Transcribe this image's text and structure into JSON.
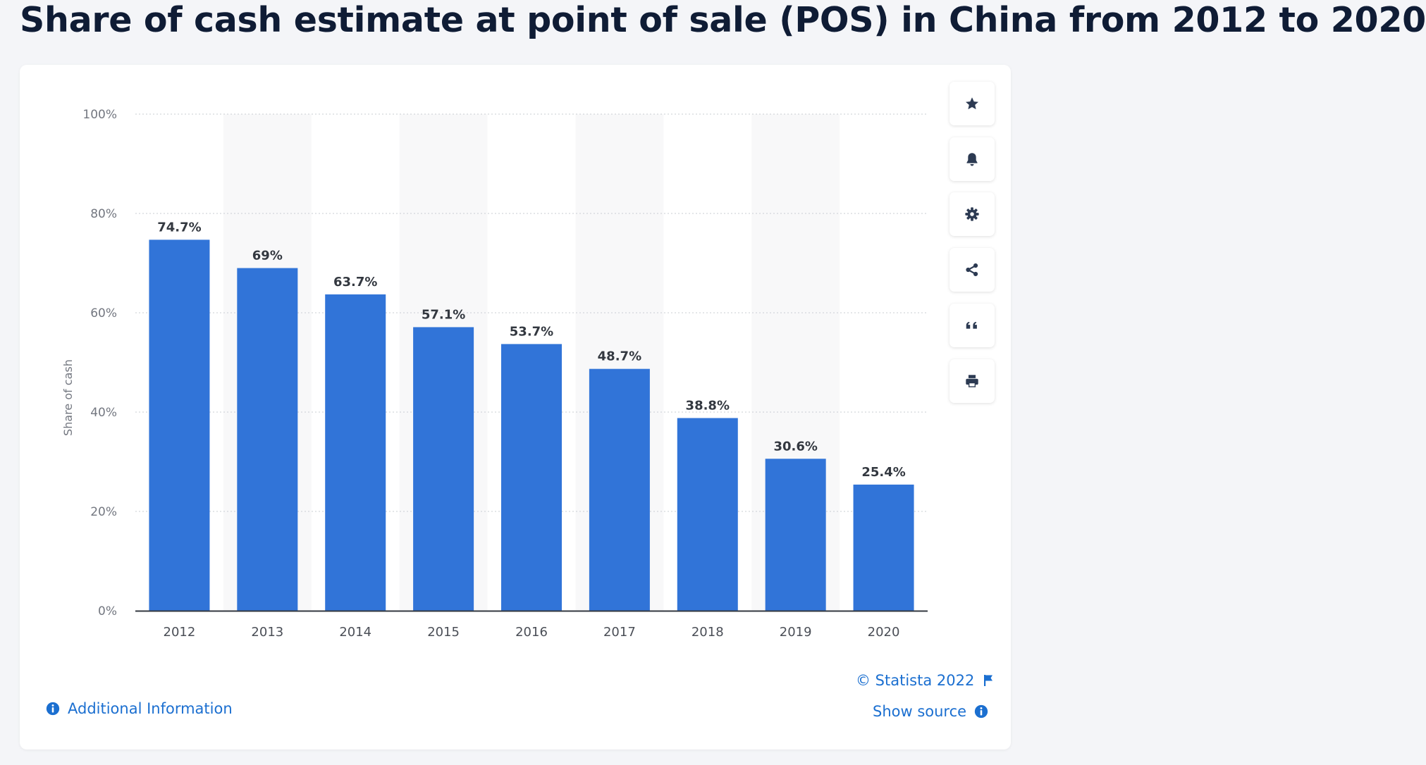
{
  "page": {
    "title": "Share of cash estimate at point of sale (POS) in China from 2012 to 2020"
  },
  "toolbar": {
    "buttons": [
      {
        "icon": "star-icon",
        "label": "Favorite"
      },
      {
        "icon": "bell-icon",
        "label": "Notifications"
      },
      {
        "icon": "gear-icon",
        "label": "Settings"
      },
      {
        "icon": "share-icon",
        "label": "Share"
      },
      {
        "icon": "quote-icon",
        "label": "Cite"
      },
      {
        "icon": "print-icon",
        "label": "Print"
      }
    ]
  },
  "footer": {
    "additional_info": "Additional Information",
    "copyright": "© Statista 2022",
    "show_source": "Show source"
  },
  "colors": {
    "bar": "#3174d8",
    "link": "#1b6fd0",
    "title": "#0f1c35",
    "band": "#f8f8f9"
  },
  "chart_data": {
    "type": "bar",
    "categories": [
      "2012",
      "2013",
      "2014",
      "2015",
      "2016",
      "2017",
      "2018",
      "2019",
      "2020"
    ],
    "values": [
      74.7,
      69,
      63.7,
      57.1,
      53.7,
      48.7,
      38.8,
      30.6,
      25.4
    ],
    "value_labels": [
      "74.7%",
      "69%",
      "63.7%",
      "57.1%",
      "53.7%",
      "48.7%",
      "38.8%",
      "30.6%",
      "25.4%"
    ],
    "ylabel": "Share of cash",
    "ylim": [
      0,
      100
    ],
    "yticks": [
      0,
      20,
      40,
      60,
      80,
      100
    ],
    "ytick_labels": [
      "0%",
      "20%",
      "40%",
      "60%",
      "80%",
      "100%"
    ],
    "grid": true,
    "legend": "none"
  }
}
